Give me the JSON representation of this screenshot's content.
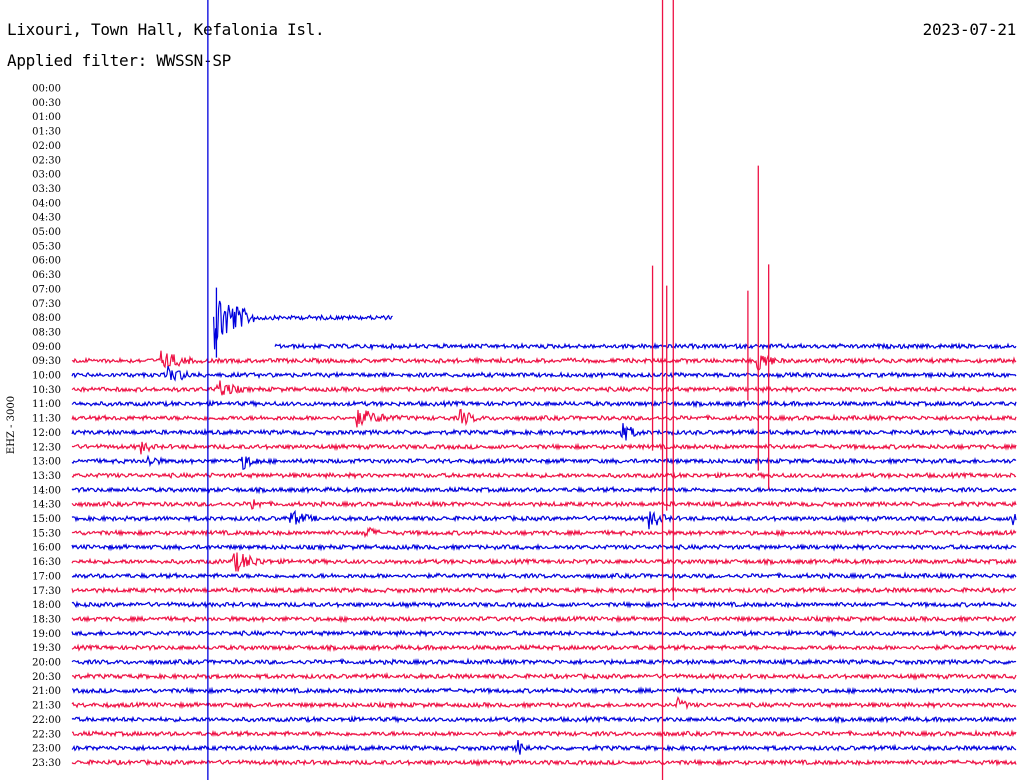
{
  "header": {
    "station": "Lixouri, Town Hall, Kefalonia Isl.",
    "filter": "Applied filter: WWSSN-SP",
    "date": "2023-07-21"
  },
  "chart_data": {
    "type": "line",
    "title": "Lixouri, Town Hall, Kefalonia Isl.",
    "subtitle": "Applied filter: WWSSN-SP",
    "ylabel": "EHZ - 3000",
    "row_labels": [
      "00:00",
      "00:30",
      "01:00",
      "01:30",
      "02:00",
      "02:30",
      "03:00",
      "03:30",
      "04:00",
      "04:30",
      "05:00",
      "05:30",
      "06:00",
      "06:30",
      "07:00",
      "07:30",
      "08:00",
      "08:30",
      "09:00",
      "09:30",
      "10:00",
      "10:30",
      "11:00",
      "11:30",
      "12:00",
      "12:30",
      "13:00",
      "13:30",
      "14:00",
      "14:30",
      "15:00",
      "15:30",
      "16:00",
      "16:30",
      "17:00",
      "17:30",
      "18:00",
      "18:30",
      "19:00",
      "19:30",
      "20:00",
      "20:30",
      "21:00",
      "21:30",
      "22:00",
      "22:30",
      "23:00",
      "23:30"
    ],
    "colors": {
      "odd_row": "#0000dd",
      "even_row": "#ee1144",
      "text": "#000000"
    },
    "trace_start": {
      "08:00": 0.15,
      "09:00": 0.215
    },
    "trace_end": {
      "08:00": 0.34
    },
    "events": [
      {
        "row": "08:00",
        "x": 0.151,
        "amp": 30,
        "dur": 0.06
      },
      {
        "row": "09:30",
        "x": 0.093,
        "amp": 9,
        "dur": 0.05
      },
      {
        "row": "10:00",
        "x": 0.1,
        "amp": 8,
        "dur": 0.04
      },
      {
        "row": "10:30",
        "x": 0.151,
        "amp": 10,
        "dur": 0.04
      },
      {
        "row": "11:30",
        "x": 0.3,
        "amp": 8,
        "dur": 0.06
      },
      {
        "row": "11:30",
        "x": 0.41,
        "amp": 8,
        "dur": 0.03
      },
      {
        "row": "12:00",
        "x": 0.58,
        "amp": 10,
        "dur": 0.03
      },
      {
        "row": "12:30",
        "x": 0.073,
        "amp": 6,
        "dur": 0.02
      },
      {
        "row": "13:00",
        "x": 0.08,
        "amp": 7,
        "dur": 0.02
      },
      {
        "row": "13:00",
        "x": 0.18,
        "amp": 7,
        "dur": 0.03
      },
      {
        "row": "14:30",
        "x": 0.19,
        "amp": 6,
        "dur": 0.02
      },
      {
        "row": "15:00",
        "x": 0.23,
        "amp": 7,
        "dur": 0.04
      },
      {
        "row": "15:00",
        "x": 0.61,
        "amp": 10,
        "dur": 0.03
      },
      {
        "row": "15:00",
        "x": 0.995,
        "amp": 8,
        "dur": 0.02
      },
      {
        "row": "15:30",
        "x": 0.31,
        "amp": 7,
        "dur": 0.02
      },
      {
        "row": "16:30",
        "x": 0.17,
        "amp": 10,
        "dur": 0.05
      },
      {
        "row": "21:30",
        "x": 0.64,
        "amp": 7,
        "dur": 0.02
      },
      {
        "row": "23:00",
        "x": 0.47,
        "amp": 9,
        "dur": 0.02
      },
      {
        "row": "09:30",
        "x": 0.725,
        "amp": 12,
        "dur": 0.03
      }
    ],
    "spikes": [
      {
        "row": "09:30",
        "x": 0.615,
        "up": 95,
        "down": 90,
        "color": "red"
      },
      {
        "row": "09:30",
        "x": 0.63,
        "up": 75,
        "down": 150,
        "color": "red"
      },
      {
        "row": "09:30",
        "x": 0.727,
        "up": 195,
        "down": 110,
        "color": "red"
      },
      {
        "row": "09:30",
        "x": 0.716,
        "up": 70,
        "down": 40,
        "color": "red"
      },
      {
        "row": "10:30",
        "x": 0.738,
        "up": 125,
        "down": 100,
        "color": "red"
      },
      {
        "row": "08:00",
        "x": 0.153,
        "up": 30,
        "down": 40,
        "color": "blue"
      }
    ],
    "markers": [
      {
        "x_frac": 0.203,
        "color": "blue"
      },
      {
        "x_frac": 0.647,
        "color": "red"
      },
      {
        "x_frac": 0.6575,
        "color": "red",
        "stop_frac": 0.77
      }
    ]
  }
}
